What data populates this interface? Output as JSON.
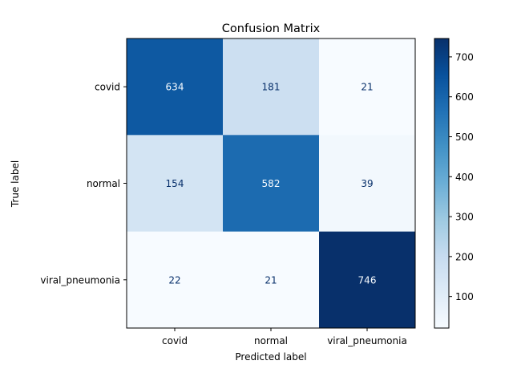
{
  "chart_data": {
    "type": "heatmap",
    "title": "Confusion Matrix",
    "xlabel": "Predicted label",
    "ylabel": "True label",
    "x_categories": [
      "covid",
      "normal",
      "viral_pneumonia"
    ],
    "y_categories": [
      "covid",
      "normal",
      "viral_pneumonia"
    ],
    "values": [
      [
        634,
        181,
        21
      ],
      [
        154,
        582,
        39
      ],
      [
        22,
        21,
        746
      ]
    ],
    "colormap": "Blues",
    "colorbar": {
      "range": [
        21,
        746
      ],
      "ticks": [
        100,
        200,
        300,
        400,
        500,
        600,
        700
      ]
    },
    "grid": false
  }
}
